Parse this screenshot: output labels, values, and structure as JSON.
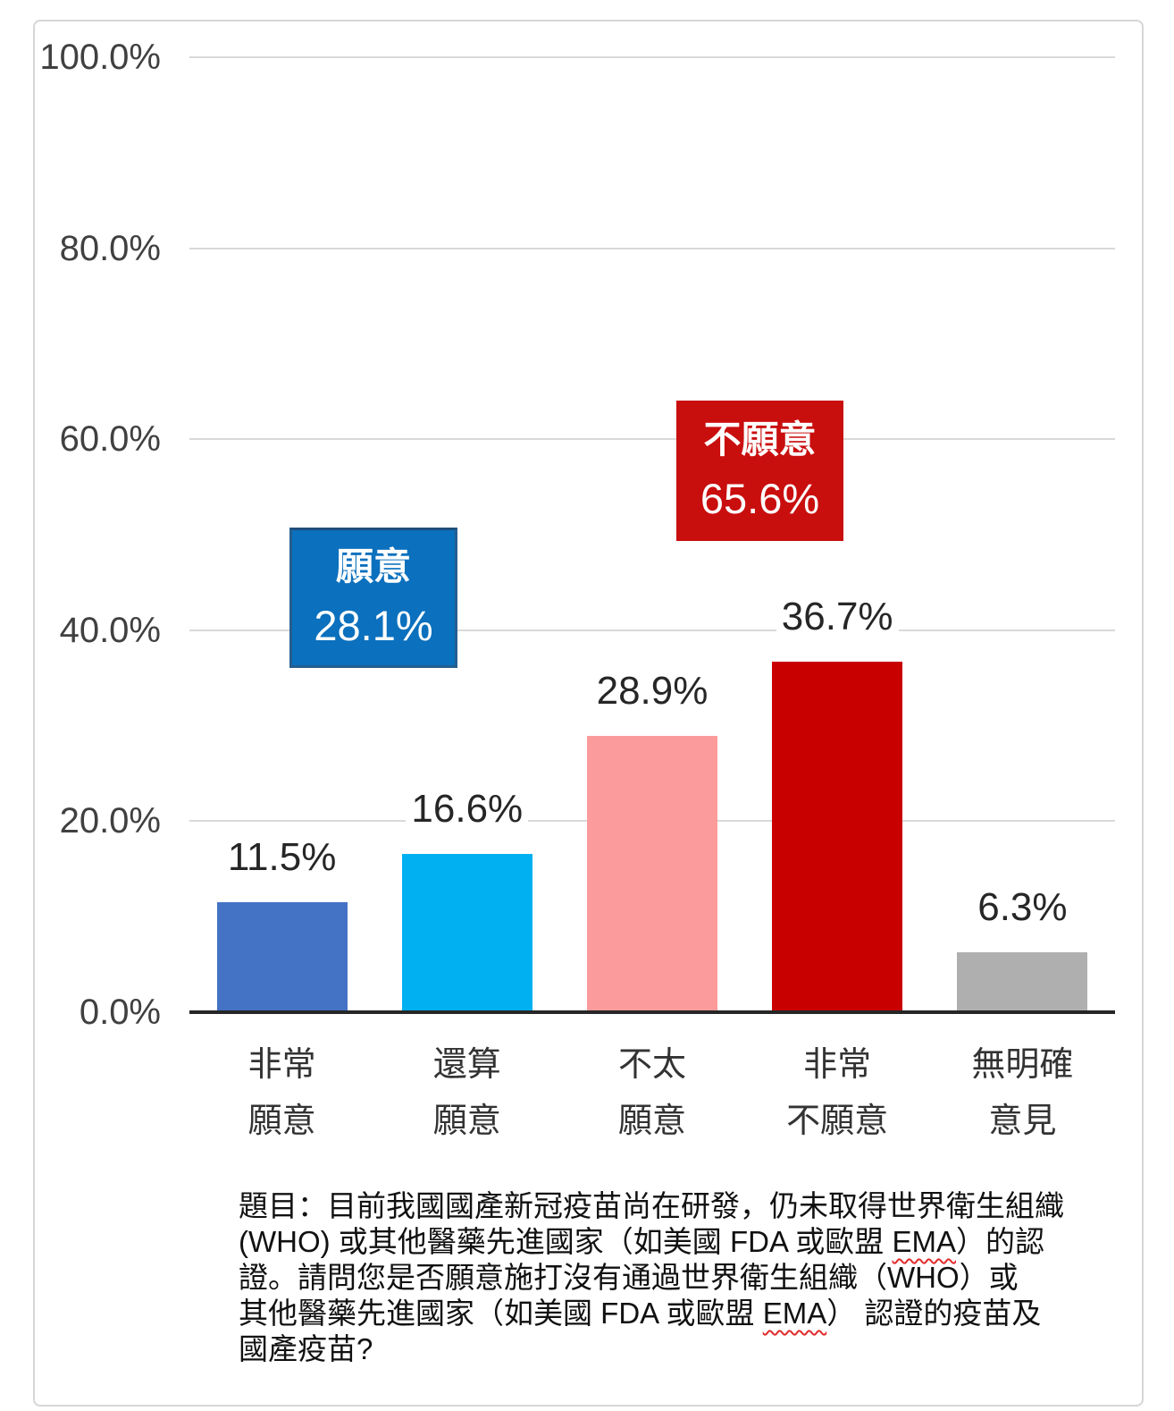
{
  "chart_data": {
    "type": "bar",
    "title": "",
    "xlabel": "",
    "ylabel": "",
    "categories": [
      "非常願意",
      "還算願意",
      "不太願意",
      "非常不願意",
      "無明確意見"
    ],
    "category_lines": [
      [
        "非常",
        "願意"
      ],
      [
        "還算",
        "願意"
      ],
      [
        "不太",
        "願意"
      ],
      [
        "非常",
        "不願意"
      ],
      [
        "無明確",
        "意見"
      ]
    ],
    "values": [
      11.5,
      16.6,
      28.9,
      36.7,
      6.3
    ],
    "value_labels": [
      "11.5%",
      "16.6%",
      "28.9%",
      "36.7%",
      "6.3%"
    ],
    "bar_colors": [
      "#4472C4",
      "#00B0F0",
      "#FB9B9B",
      "#C80000",
      "#AFAFAF"
    ],
    "ylim": [
      0,
      100
    ],
    "grid": true,
    "legend_position": "none",
    "yticks": [
      {
        "label": "100.0%",
        "value": 100
      },
      {
        "label": "80.0%",
        "value": 80
      },
      {
        "label": "60.0%",
        "value": 60
      },
      {
        "label": "40.0%",
        "value": 40
      },
      {
        "label": "20.0%",
        "value": 20
      },
      {
        "label": "0.0%",
        "value": 0
      }
    ],
    "annotations": [
      {
        "id": "willing",
        "label": "願意",
        "value_label": "28.1%",
        "color": "#0B70BD"
      },
      {
        "id": "unwilling",
        "label": "不願意",
        "value_label": "65.6%",
        "color": "#C90E0E"
      }
    ]
  },
  "question": {
    "lines": [
      {
        "parts": [
          {
            "t": "題目：目前我國國產新冠疫苗尚在研發，仍未取得世界衛生組織"
          }
        ]
      },
      {
        "parts": [
          {
            "t": "(WHO) 或其他醫藥先進國家（如美國 FDA 或歐盟 "
          },
          {
            "t": "EMA",
            "squiggle": true
          },
          {
            "t": "）的認"
          }
        ]
      },
      {
        "parts": [
          {
            "t": "證。請問您是否願意施打沒有通過世界衛生組織（WHO）或"
          }
        ]
      },
      {
        "parts": [
          {
            "t": "其他醫藥先進國家（如美國 FDA 或歐盟 "
          },
          {
            "t": "EMA",
            "squiggle": true
          },
          {
            "t": "） 認證的疫苗及"
          }
        ]
      },
      {
        "parts": [
          {
            "t": "國產疫苗?"
          }
        ]
      }
    ]
  },
  "colors": {
    "gridline": "#D9D9D9",
    "axis": "#262626",
    "tick_label": "#404040",
    "data_label": "#262626",
    "category_label": "#333333",
    "frame_border": "#D6D6D6",
    "squiggle": "#E02B2B"
  }
}
